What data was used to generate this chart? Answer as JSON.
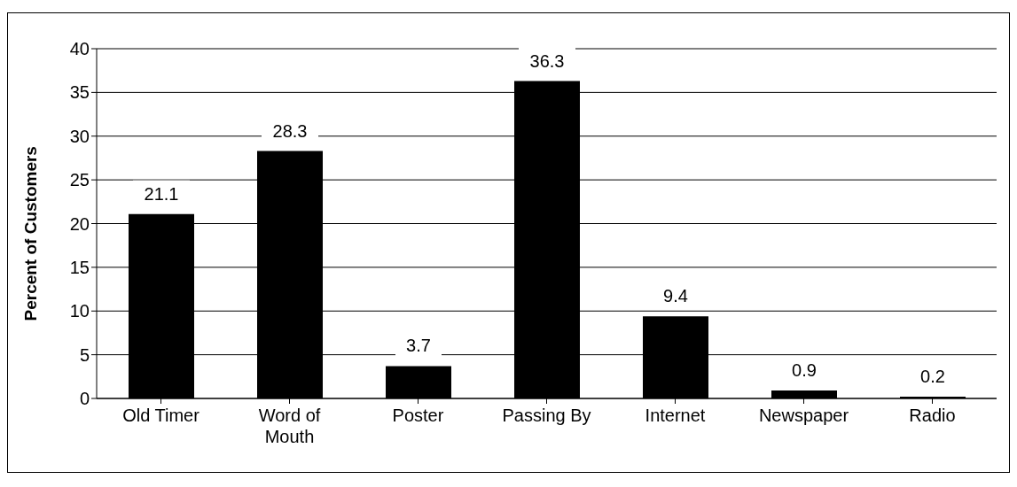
{
  "chart_data": {
    "type": "bar",
    "ylabel": "Percent of Customers",
    "categories": [
      "Old Timer",
      "Word of Mouth",
      "Poster",
      "Passing By",
      "Internet",
      "Newspaper",
      "Radio"
    ],
    "values": [
      21.1,
      28.3,
      3.7,
      36.3,
      9.4,
      0.9,
      0.2
    ],
    "color": "#000000",
    "ylim": [
      0,
      40
    ],
    "yticks": [
      0,
      5,
      10,
      15,
      20,
      25,
      30,
      35,
      40
    ],
    "grid": "y",
    "data_labels": true
  }
}
